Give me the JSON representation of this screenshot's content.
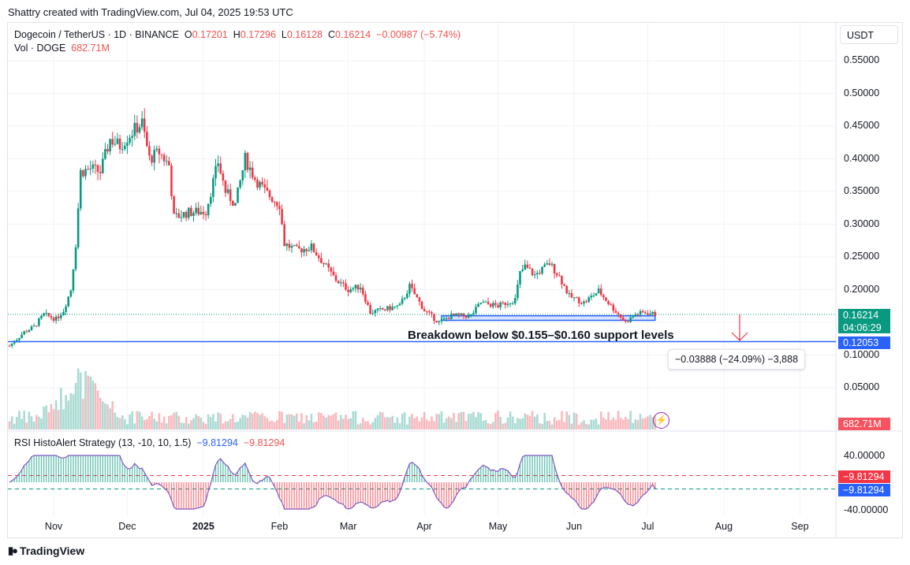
{
  "caption": "Shattry created with TradingView.com, Jul 04, 2025 19:53 UTC",
  "legend": {
    "symbol": "Dogecoin / TetherUS · 1D · BINANCE",
    "open_label": "O",
    "open": "0.17201",
    "high_label": "H",
    "high": "0.17296",
    "low_label": "L",
    "low": "0.16128",
    "close_label": "C",
    "close": "0.16214",
    "change": "−0.00987 (−5.74%)",
    "vol_label": "Vol · DOGE",
    "vol_value": "682.71M"
  },
  "currency": "USDT",
  "rsi_legend": {
    "name": "RSI HistoAlert Strategy (13, -10, 10, 1.5)",
    "value1": "−9.81294",
    "value2": "−9.81294"
  },
  "price_tags": {
    "last_price": "0.16214",
    "countdown": "04:06:29",
    "support_line": "0.12053",
    "volume": "682.71M",
    "rsi_red": "−9.81294",
    "rsi_blue": "−9.81294"
  },
  "annotation": "Breakdown below $0.155–$0.160 support levels",
  "measure": "−0.03888 (−24.09%) −3,888",
  "branding": "TradingView",
  "colors": {
    "up": "#089981",
    "down": "#f23645",
    "line": "#2962ff",
    "accent": "#9c27b0"
  },
  "chart_data": {
    "type": "candlestick",
    "title": "Dogecoin / TetherUS · 1D · BINANCE",
    "y_axis": {
      "ticks": [
        "0.55000",
        "0.50000",
        "0.45000",
        "0.40000",
        "0.35000",
        "0.30000",
        "0.25000",
        "0.20000",
        "0.15000",
        "0.10000",
        "0.05000"
      ],
      "range": [
        0.05,
        0.55
      ]
    },
    "x_axis": {
      "ticks": [
        "Nov",
        "Dec",
        "2025",
        "Feb",
        "Mar",
        "Apr",
        "May",
        "Jun",
        "Jul",
        "Aug",
        "Sep"
      ],
      "start": "2024-10-14",
      "end": "2025-09-15"
    },
    "price_path": [
      [
        "2024-10-14",
        0.114
      ],
      [
        "2024-10-20",
        0.135
      ],
      [
        "2024-10-24",
        0.143
      ],
      [
        "2024-10-28",
        0.162
      ],
      [
        "2024-11-02",
        0.155
      ],
      [
        "2024-11-05",
        0.168
      ],
      [
        "2024-11-08",
        0.2
      ],
      [
        "2024-11-10",
        0.27
      ],
      [
        "2024-11-12",
        0.38
      ],
      [
        "2024-11-16",
        0.385
      ],
      [
        "2024-11-20",
        0.38
      ],
      [
        "2024-11-24",
        0.43
      ],
      [
        "2024-11-28",
        0.42
      ],
      [
        "2024-12-04",
        0.445
      ],
      [
        "2024-12-07",
        0.455
      ],
      [
        "2024-12-10",
        0.4
      ],
      [
        "2024-12-14",
        0.41
      ],
      [
        "2024-12-18",
        0.39
      ],
      [
        "2024-12-20",
        0.31
      ],
      [
        "2024-12-26",
        0.318
      ],
      [
        "2025-01-02",
        0.32
      ],
      [
        "2025-01-07",
        0.395
      ],
      [
        "2025-01-10",
        0.35
      ],
      [
        "2025-01-14",
        0.33
      ],
      [
        "2025-01-18",
        0.4
      ],
      [
        "2025-01-22",
        0.37
      ],
      [
        "2025-01-26",
        0.35
      ],
      [
        "2025-02-01",
        0.33
      ],
      [
        "2025-02-03",
        0.27
      ],
      [
        "2025-02-08",
        0.26
      ],
      [
        "2025-02-14",
        0.265
      ],
      [
        "2025-02-18",
        0.245
      ],
      [
        "2025-02-24",
        0.215
      ],
      [
        "2025-03-01",
        0.2
      ],
      [
        "2025-03-06",
        0.205
      ],
      [
        "2025-03-10",
        0.165
      ],
      [
        "2025-03-16",
        0.17
      ],
      [
        "2025-03-22",
        0.175
      ],
      [
        "2025-03-26",
        0.205
      ],
      [
        "2025-04-01",
        0.168
      ],
      [
        "2025-04-07",
        0.15
      ],
      [
        "2025-04-12",
        0.16
      ],
      [
        "2025-04-20",
        0.16
      ],
      [
        "2025-04-24",
        0.18
      ],
      [
        "2025-05-01",
        0.175
      ],
      [
        "2025-05-08",
        0.185
      ],
      [
        "2025-05-10",
        0.225
      ],
      [
        "2025-05-12",
        0.235
      ],
      [
        "2025-05-16",
        0.222
      ],
      [
        "2025-05-22",
        0.24
      ],
      [
        "2025-05-26",
        0.22
      ],
      [
        "2025-05-30",
        0.19
      ],
      [
        "2025-06-05",
        0.18
      ],
      [
        "2025-06-11",
        0.198
      ],
      [
        "2025-06-16",
        0.175
      ],
      [
        "2025-06-22",
        0.15
      ],
      [
        "2025-06-26",
        0.162
      ],
      [
        "2025-06-30",
        0.165
      ],
      [
        "2025-07-04",
        0.162
      ]
    ],
    "last_price": 0.16214,
    "support_line_price": 0.12053,
    "support_zone": {
      "from": "2025-04-08",
      "to": "2025-07-04",
      "low": 0.153,
      "high": 0.16
    },
    "volume_peak": "2024-11-12",
    "rsi": {
      "ticks": [
        "40.00000",
        "-40.00000"
      ],
      "upper_level": 10,
      "lower_level": -10,
      "last": -9.81294
    }
  }
}
